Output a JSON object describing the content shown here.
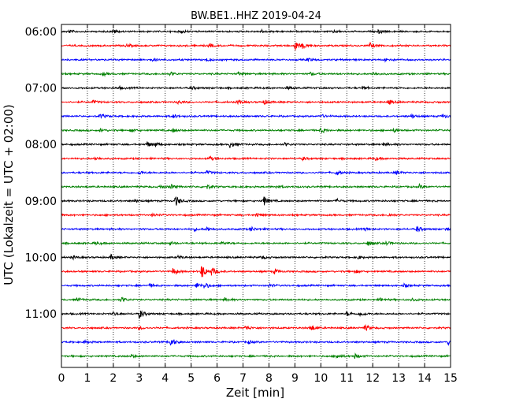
{
  "chart_data": {
    "type": "line",
    "title": "BW.BE1..HHZ 2019-04-24",
    "xlabel": "Zeit  [min]",
    "ylabel": "UTC (Lokalzeit = UTC + 02:00)",
    "xlim": [
      0,
      15
    ],
    "x_ticks": [
      "0",
      "1",
      "2",
      "3",
      "4",
      "5",
      "6",
      "7",
      "8",
      "9",
      "10",
      "11",
      "12",
      "13",
      "14",
      "15"
    ],
    "y_ticks": [
      "06:00",
      "07:00",
      "08:00",
      "09:00",
      "10:00",
      "11:00"
    ],
    "grid": "vertical dotted at each minute",
    "trace_interval_minutes": 15,
    "first_trace_start": "06:00",
    "trace_colors": [
      "#000000",
      "#ff0000",
      "#0000ff",
      "#008000"
    ],
    "series": [
      {
        "start": "06:00",
        "events": [
          [
            0.3,
            0.25
          ],
          [
            2.0,
            0.35
          ],
          [
            4.6,
            0.3
          ],
          [
            7.7,
            0.3
          ],
          [
            10.5,
            0.25
          ],
          [
            12.2,
            0.3
          ]
        ]
      },
      {
        "start": "06:15",
        "events": [
          [
            2.5,
            0.3
          ],
          [
            5.7,
            0.35
          ],
          [
            9.0,
            1.0
          ],
          [
            9.3,
            0.4
          ],
          [
            11.9,
            0.5
          ]
        ]
      },
      {
        "start": "06:30",
        "events": [
          [
            3.5,
            0.25
          ],
          [
            5.6,
            0.3
          ],
          [
            9.5,
            0.3
          ],
          [
            12.5,
            0.3
          ]
        ]
      },
      {
        "start": "06:45",
        "events": [
          [
            1.6,
            0.3
          ],
          [
            4.2,
            0.35
          ],
          [
            6.8,
            0.3
          ],
          [
            9.6,
            0.3
          ],
          [
            12.0,
            0.3
          ]
        ]
      },
      {
        "start": "07:00",
        "events": [
          [
            2.2,
            0.25
          ],
          [
            5.0,
            0.3
          ],
          [
            8.7,
            0.3
          ],
          [
            11.6,
            0.25
          ]
        ]
      },
      {
        "start": "07:15",
        "events": [
          [
            1.2,
            0.3
          ],
          [
            4.5,
            0.35
          ],
          [
            6.8,
            0.4
          ],
          [
            7.8,
            0.4
          ],
          [
            12.6,
            0.45
          ]
        ]
      },
      {
        "start": "07:30",
        "events": [
          [
            1.5,
            0.4
          ],
          [
            4.3,
            0.35
          ],
          [
            10.0,
            0.3
          ],
          [
            13.5,
            0.35
          ],
          [
            14.7,
            0.4
          ]
        ]
      },
      {
        "start": "07:45",
        "events": [
          [
            1.5,
            0.3
          ],
          [
            2.7,
            0.3
          ],
          [
            4.3,
            0.35
          ],
          [
            10.0,
            0.5
          ],
          [
            12.8,
            0.3
          ]
        ]
      },
      {
        "start": "08:00",
        "events": [
          [
            3.3,
            0.45
          ],
          [
            3.6,
            0.4
          ],
          [
            6.5,
            0.6
          ],
          [
            8.6,
            0.3
          ],
          [
            12.4,
            0.3
          ]
        ]
      },
      {
        "start": "08:15",
        "events": [
          [
            1.3,
            0.35
          ],
          [
            5.7,
            0.4
          ],
          [
            9.3,
            0.3
          ],
          [
            12.1,
            0.3
          ]
        ]
      },
      {
        "start": "08:30",
        "events": [
          [
            3.0,
            0.3
          ],
          [
            5.6,
            0.3
          ],
          [
            10.6,
            0.45
          ],
          [
            12.9,
            0.3
          ]
        ]
      },
      {
        "start": "08:45",
        "events": [
          [
            3.8,
            0.3
          ],
          [
            4.2,
            0.45
          ],
          [
            5.6,
            0.4
          ],
          [
            8.3,
            0.3
          ],
          [
            13.8,
            0.35
          ]
        ]
      },
      {
        "start": "09:00",
        "events": [
          [
            2.8,
            0.3
          ],
          [
            4.4,
            1.0
          ],
          [
            7.8,
            0.9
          ],
          [
            10.6,
            0.3
          ]
        ]
      },
      {
        "start": "09:15",
        "events": [
          [
            3.5,
            0.3
          ],
          [
            7.5,
            0.4
          ],
          [
            12.6,
            0.4
          ]
        ]
      },
      {
        "start": "09:30",
        "events": [
          [
            5.1,
            0.3
          ],
          [
            5.6,
            0.45
          ],
          [
            7.3,
            0.45
          ],
          [
            11.7,
            0.3
          ],
          [
            13.7,
            0.55
          ],
          [
            14.8,
            0.3
          ]
        ]
      },
      {
        "start": "09:45",
        "events": [
          [
            1.3,
            0.3
          ],
          [
            4.2,
            0.3
          ],
          [
            6.2,
            0.3
          ],
          [
            11.8,
            0.45
          ],
          [
            12.5,
            0.35
          ]
        ]
      },
      {
        "start": "10:00",
        "events": [
          [
            0.4,
            0.3
          ],
          [
            1.9,
            0.45
          ],
          [
            4.5,
            0.3
          ],
          [
            7.7,
            0.3
          ],
          [
            11.4,
            0.35
          ]
        ]
      },
      {
        "start": "10:15",
        "events": [
          [
            4.3,
            0.7
          ],
          [
            5.4,
            1.4
          ],
          [
            5.8,
            0.8
          ],
          [
            8.2,
            0.45
          ],
          [
            11.3,
            0.3
          ]
        ]
      },
      {
        "start": "10:30",
        "events": [
          [
            3.4,
            0.3
          ],
          [
            5.2,
            0.45
          ],
          [
            5.5,
            0.55
          ],
          [
            8.0,
            0.3
          ],
          [
            13.2,
            0.3
          ]
        ]
      },
      {
        "start": "10:45",
        "events": [
          [
            0.6,
            0.3
          ],
          [
            2.3,
            0.5
          ],
          [
            6.3,
            0.3
          ],
          [
            12.3,
            0.3
          ],
          [
            13.5,
            0.35
          ]
        ]
      },
      {
        "start": "11:00",
        "events": [
          [
            2.0,
            0.3
          ],
          [
            3.0,
            0.9
          ],
          [
            11.0,
            0.4
          ],
          [
            11.5,
            0.45
          ]
        ]
      },
      {
        "start": "11:15",
        "events": [
          [
            3.0,
            0.3
          ],
          [
            7.1,
            0.5
          ],
          [
            9.6,
            0.7
          ],
          [
            11.7,
            0.55
          ]
        ]
      },
      {
        "start": "11:30",
        "events": [
          [
            0.9,
            0.3
          ],
          [
            4.2,
            0.9
          ],
          [
            7.2,
            0.3
          ],
          [
            14.9,
            0.45
          ]
        ]
      },
      {
        "start": "11:45",
        "events": [
          [
            2.7,
            0.3
          ],
          [
            10.6,
            0.5
          ],
          [
            11.3,
            0.45
          ]
        ]
      }
    ]
  }
}
